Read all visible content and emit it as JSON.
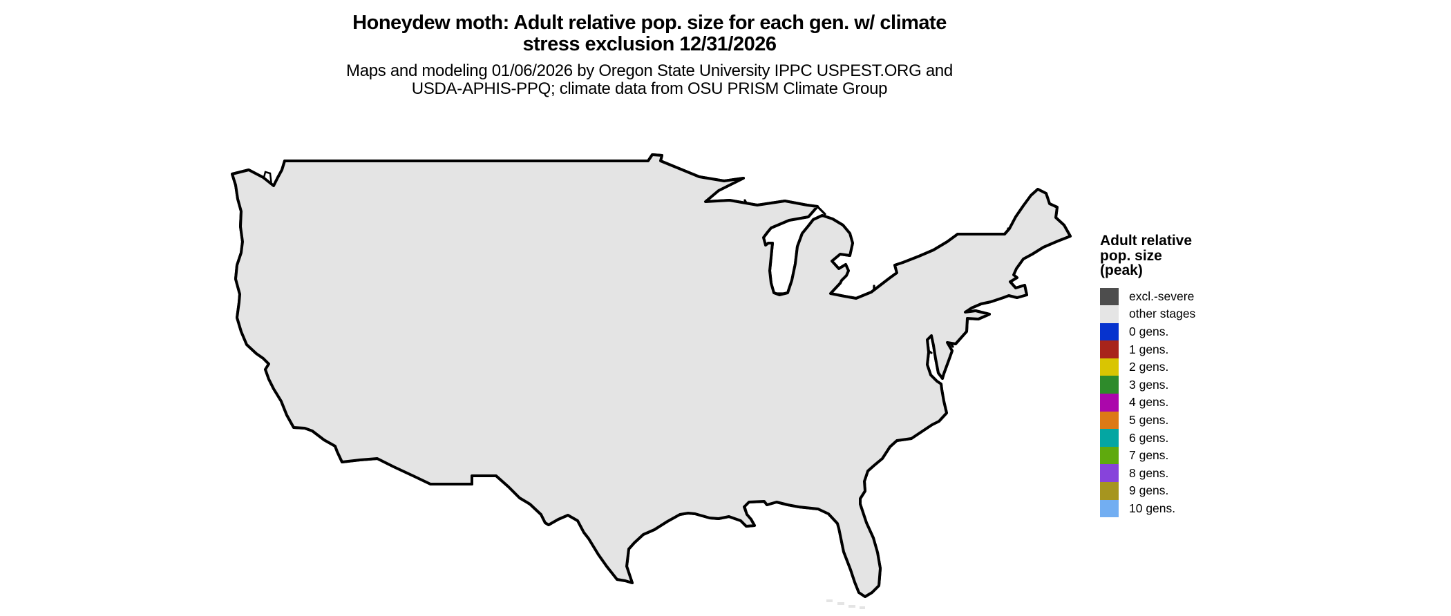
{
  "title": {
    "line1": "Honeydew moth: Adult relative pop. size for each gen. w/ climate",
    "line2": "stress exclusion 12/31/2026"
  },
  "subtitle": {
    "line1": "Maps and modeling 01/06/2026 by Oregon State University IPPC USPEST.ORG and",
    "line2": "USDA-APHIS-PPQ; climate data from OSU PRISM Climate Group"
  },
  "legend": {
    "title_lines": [
      "Adult relative",
      "pop. size",
      "(peak)"
    ],
    "items": [
      {
        "label": "excl.-severe",
        "color": "#4D4D4D"
      },
      {
        "label": "other stages",
        "color": "#E5E5E5"
      },
      {
        "label": "0 gens.",
        "color": "#0633CE"
      },
      {
        "label": "1 gens.",
        "color": "#A8241B"
      },
      {
        "label": "2 gens.",
        "color": "#D9C502"
      },
      {
        "label": "3 gens.",
        "color": "#2E8B2B"
      },
      {
        "label": "4 gens.",
        "color": "#AB07AB"
      },
      {
        "label": "5 gens.",
        "color": "#DD7A16"
      },
      {
        "label": "6 gens.",
        "color": "#04A6A2"
      },
      {
        "label": "7 gens.",
        "color": "#5FAA0D"
      },
      {
        "label": "8 gens.",
        "color": "#8743DB"
      },
      {
        "label": "9 gens.",
        "color": "#A6951F"
      },
      {
        "label": "10 gens.",
        "color": "#72AEF2"
      }
    ]
  },
  "map": {
    "region": "Contiguous United States",
    "kind": "raster generation-count map with state borders"
  },
  "map_colors": {
    "land": "#E4E4E4",
    "excluded": "#4D4D4D",
    "water": "#FFFFFF",
    "border": "#000000",
    "green_light": "#85D885",
    "yellow_bright": "#F0E004",
    "red_coast": "#D03C1B",
    "magenta_bright": "#CC0DCC",
    "near_black": "#151515"
  }
}
